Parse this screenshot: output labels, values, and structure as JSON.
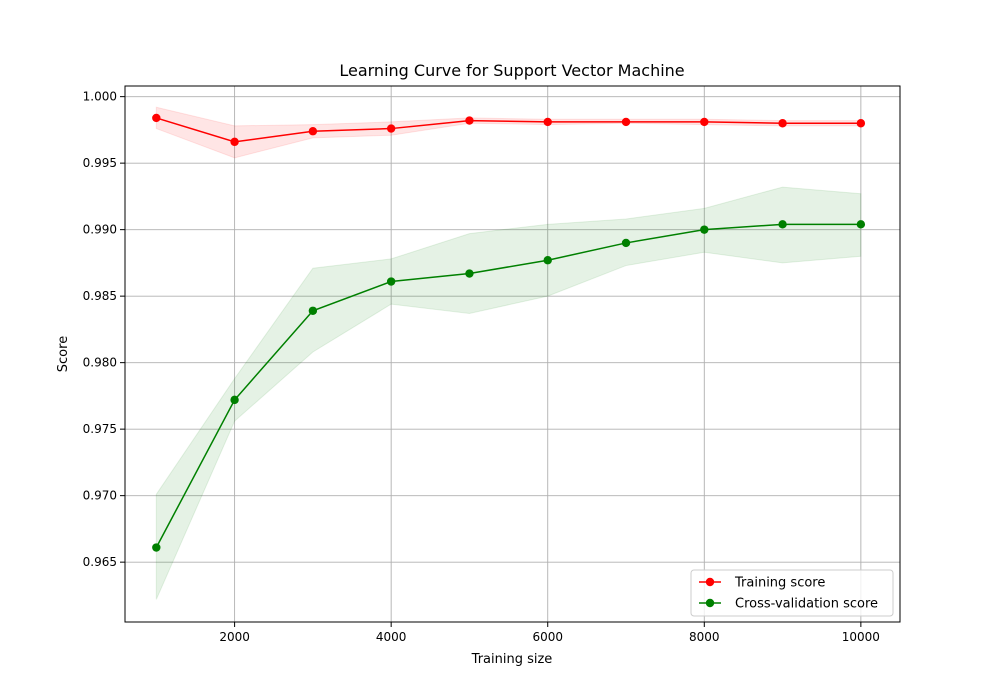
{
  "chart_data": {
    "type": "line",
    "title": "Learning Curve for Support Vector Machine",
    "xlabel": "Training size",
    "ylabel": "Score",
    "xlim": [
      600,
      10500
    ],
    "ylim": [
      0.9605,
      1.0008
    ],
    "xticks": [
      2000,
      4000,
      6000,
      8000,
      10000
    ],
    "xtick_labels": [
      "2000",
      "4000",
      "6000",
      "8000",
      "10000"
    ],
    "yticks": [
      0.965,
      0.97,
      0.975,
      0.98,
      0.985,
      0.99,
      0.995,
      1.0
    ],
    "ytick_labels": [
      "0.965",
      "0.970",
      "0.975",
      "0.980",
      "0.985",
      "0.990",
      "0.995",
      "1.000"
    ],
    "grid": true,
    "legend_position": "lower-right",
    "x": [
      1000,
      2000,
      3000,
      4000,
      5000,
      6000,
      7000,
      8000,
      9000,
      10000
    ],
    "series": [
      {
        "name": "Training score",
        "color": "#ff0000",
        "band_color": "#ff0000",
        "values": [
          0.9984,
          0.9966,
          0.9974,
          0.9976,
          0.9982,
          0.9981,
          0.9981,
          0.9981,
          0.998,
          0.998
        ],
        "lower": [
          0.9976,
          0.9954,
          0.9969,
          0.9971,
          0.998,
          0.9979,
          0.998,
          0.9979,
          0.9978,
          0.9978
        ],
        "upper": [
          0.9992,
          0.9978,
          0.9979,
          0.9981,
          0.9984,
          0.9983,
          0.9983,
          0.9983,
          0.9982,
          0.9982
        ]
      },
      {
        "name": "Cross-validation score",
        "color": "#008000",
        "band_color": "#008000",
        "values": [
          0.9661,
          0.9772,
          0.9839,
          0.9861,
          0.9867,
          0.9877,
          0.989,
          0.99,
          0.9904,
          0.9904
        ],
        "lower": [
          0.9622,
          0.9756,
          0.9808,
          0.9844,
          0.9837,
          0.985,
          0.9873,
          0.9883,
          0.9875,
          0.988
        ],
        "upper": [
          0.9701,
          0.9788,
          0.9871,
          0.9878,
          0.9897,
          0.9904,
          0.9908,
          0.9916,
          0.9932,
          0.9927
        ]
      }
    ]
  }
}
